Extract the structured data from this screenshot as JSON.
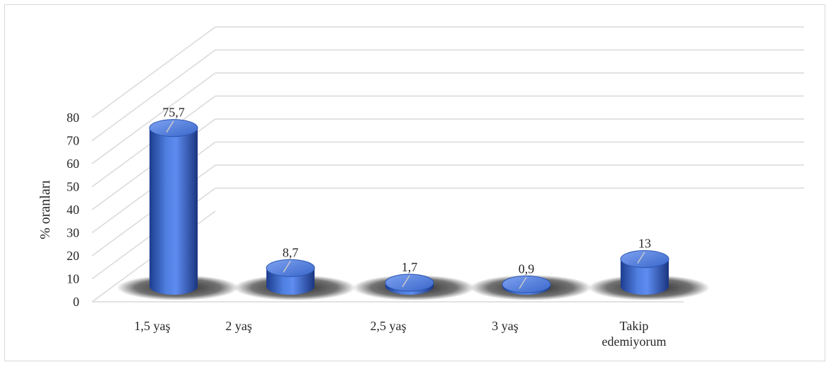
{
  "chart_data": {
    "type": "bar",
    "style": "3d-cylinder",
    "categories": [
      "1,5 yaş",
      "2 yaş",
      "2,5 yaş",
      "3 yaş",
      [
        "Takip",
        "edemiyorum"
      ]
    ],
    "values": [
      75.7,
      8.7,
      1.7,
      0.9,
      13
    ],
    "data_labels": [
      "75,7",
      "8,7",
      "1,7",
      "0,9",
      "13"
    ],
    "title": "",
    "xlabel": "",
    "ylabel": "% oranları",
    "ylim": [
      0,
      80
    ],
    "yticks": [
      0,
      10,
      20,
      30,
      40,
      50,
      60,
      70,
      80
    ],
    "grid": true,
    "legend": "none",
    "colors": {
      "bar": "#4472c4",
      "bar_dark": "#1f3f8a",
      "bar_light": "#8fb0ee",
      "grid": "#d9d9d9",
      "shadow": "#000000"
    }
  }
}
